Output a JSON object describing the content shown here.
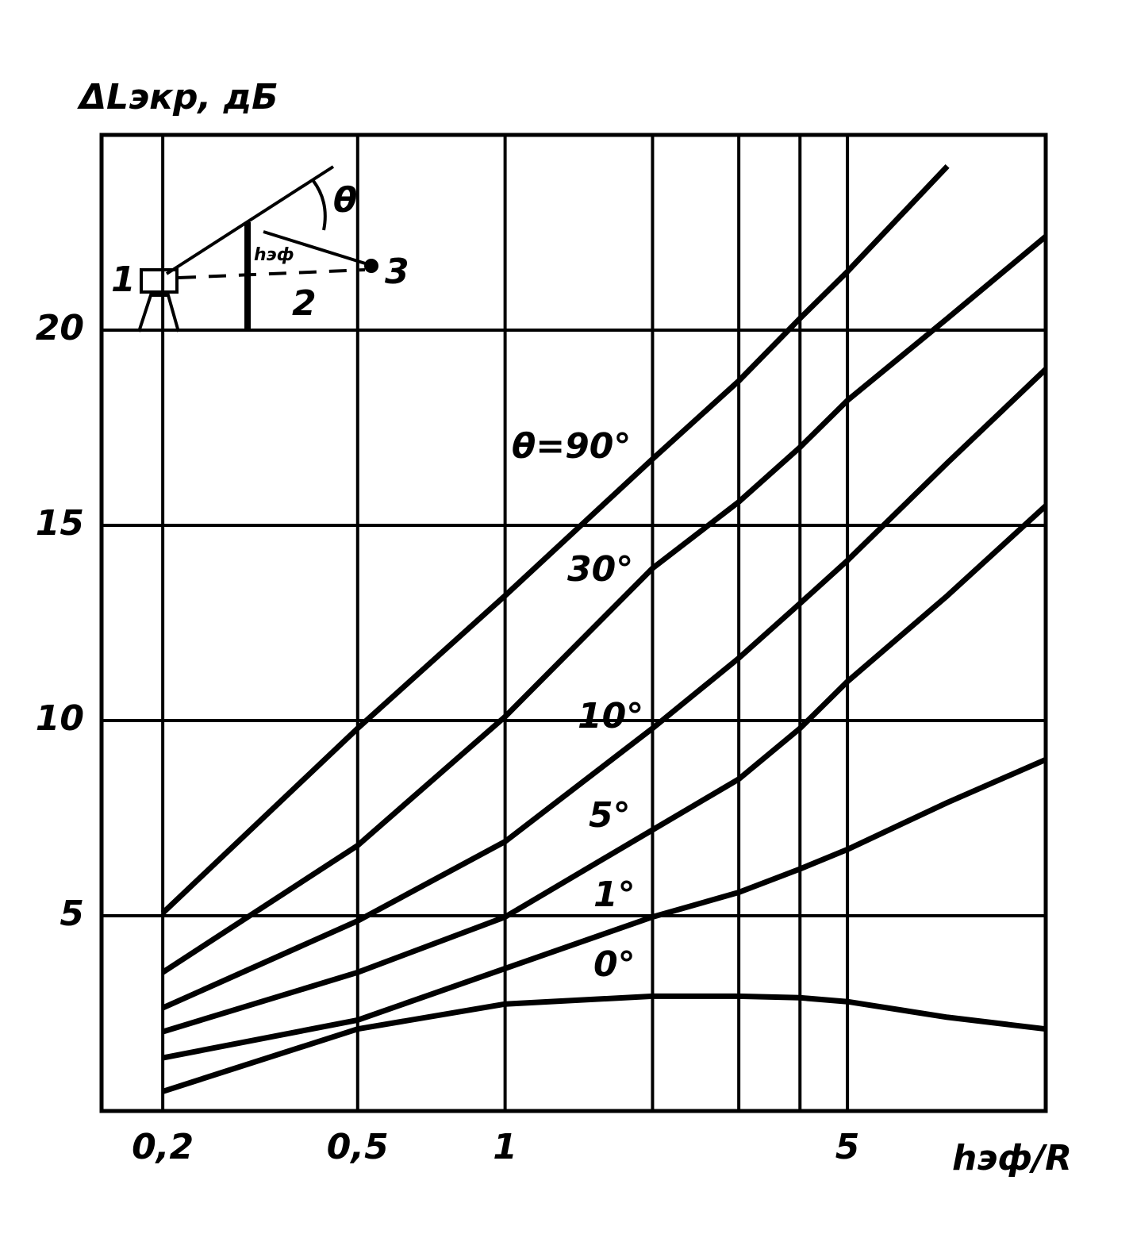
{
  "chart_data": {
    "type": "line",
    "ylabel": "ΔLэкр, дБ",
    "xlabel": "hэф/R",
    "log_x": true,
    "grid": true,
    "color": "#000000",
    "x": [
      0.2,
      0.5,
      1,
      2,
      3,
      4,
      5,
      8,
      12.7
    ],
    "xlim": [
      0.15,
      12.7
    ],
    "xticks": [
      {
        "value": 0.2,
        "label": "0,2"
      },
      {
        "value": 0.5,
        "label": "0,5"
      },
      1,
      5
    ],
    "xminor_ticks": [
      2,
      3,
      4
    ],
    "ylim": [
      0,
      25
    ],
    "yticks": [
      5,
      10,
      15,
      20
    ],
    "series": [
      {
        "name": "θ=90°",
        "values": [
          5.07,
          9.8,
          13.2,
          16.7,
          18.7,
          20.3,
          21.5,
          24.2,
          null
        ]
      },
      {
        "name": "30°",
        "values": [
          3.55,
          6.8,
          10.1,
          13.9,
          15.6,
          17.0,
          18.2,
          20.3,
          22.4
        ]
      },
      {
        "name": "10°",
        "values": [
          2.64,
          4.87,
          6.9,
          9.8,
          11.6,
          13.0,
          14.1,
          16.6,
          19.0
        ]
      },
      {
        "name": "5°",
        "values": [
          2.03,
          3.55,
          4.97,
          7.2,
          8.5,
          9.8,
          11.0,
          13.2,
          15.5
        ]
      },
      {
        "name": "1°",
        "values": [
          1.36,
          2.33,
          3.65,
          4.97,
          5.6,
          6.2,
          6.7,
          7.9,
          9.0
        ]
      },
      {
        "name": "0°",
        "values": [
          0.5,
          2.1,
          2.74,
          2.94,
          2.94,
          2.9,
          2.8,
          2.4,
          2.1
        ]
      }
    ],
    "inset_labels": [
      "1",
      "2",
      "3",
      "θ",
      "hэф"
    ]
  }
}
